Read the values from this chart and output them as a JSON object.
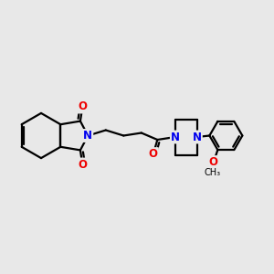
{
  "background_color": "#e8e8e8",
  "bond_color": "#000000",
  "bond_width": 1.6,
  "N_color": "#0000ee",
  "O_color": "#ee0000",
  "font_size_atoms": 8.5,
  "fig_width": 3.0,
  "fig_height": 3.0,
  "dpi": 100,
  "xlim": [
    0,
    10
  ],
  "ylim": [
    2,
    8
  ]
}
